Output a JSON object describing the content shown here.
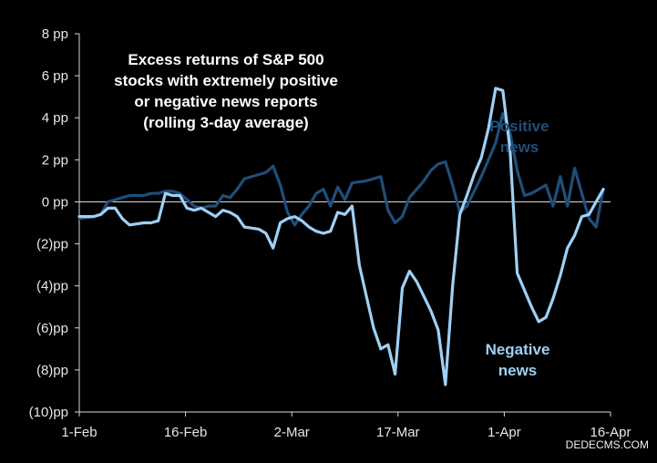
{
  "chart_data": {
    "type": "line",
    "title_lines": [
      "Excess returns of S&P 500",
      "stocks with extremely positive",
      "or negative news reports",
      "(rolling 3-day average)"
    ],
    "xlabel": "",
    "ylabel": "",
    "x_ticks": [
      "1-Feb",
      "16-Feb",
      "2-Mar",
      "17-Mar",
      "1-Apr",
      "16-Apr"
    ],
    "xlim": [
      0,
      74
    ],
    "ylim": [
      -10,
      8
    ],
    "y_ticks": [
      8,
      6,
      4,
      2,
      0,
      -2,
      -4,
      -6,
      -8,
      -10
    ],
    "y_tick_labels": [
      "8 pp",
      "6 pp",
      "4 pp",
      "2 pp",
      "0 pp",
      "(2)pp",
      "(4)pp",
      "(6)pp",
      "(8)pp",
      "(10)pp"
    ],
    "grid": false,
    "colors": {
      "positive": "#1f4e79",
      "negative": "#9fd0f5",
      "axis": "#d9d9d9",
      "background": "#000000"
    },
    "series": [
      {
        "name": "Positive news",
        "label_lines": [
          "Positive",
          "news"
        ],
        "points": [
          [
            0,
            -0.8
          ],
          [
            2,
            -0.7
          ],
          [
            3,
            -0.6
          ],
          [
            4,
            0.0
          ],
          [
            5,
            0.1
          ],
          [
            6,
            0.2
          ],
          [
            7,
            0.3
          ],
          [
            9,
            0.3
          ],
          [
            10,
            0.4
          ],
          [
            11,
            0.4
          ],
          [
            12,
            0.5
          ],
          [
            13,
            0.5
          ],
          [
            14,
            0.4
          ],
          [
            15,
            0.1
          ],
          [
            16,
            -0.2
          ],
          [
            17,
            -0.3
          ],
          [
            18,
            -0.2
          ],
          [
            19,
            -0.2
          ],
          [
            20,
            0.3
          ],
          [
            21,
            0.2
          ],
          [
            22,
            0.6
          ],
          [
            23,
            1.1
          ],
          [
            25,
            1.3
          ],
          [
            26,
            1.4
          ],
          [
            27,
            1.7
          ],
          [
            28,
            0.8
          ],
          [
            29,
            -0.5
          ],
          [
            30,
            -1.1
          ],
          [
            31,
            -0.6
          ],
          [
            32,
            -0.2
          ],
          [
            33,
            0.4
          ],
          [
            34,
            0.6
          ],
          [
            35,
            -0.2
          ],
          [
            36,
            0.7
          ],
          [
            37,
            0.1
          ],
          [
            38,
            0.9
          ],
          [
            40,
            1.0
          ],
          [
            42,
            1.2
          ],
          [
            43,
            -0.4
          ],
          [
            44,
            -1.0
          ],
          [
            45,
            -0.7
          ],
          [
            46,
            0.2
          ],
          [
            47,
            0.6
          ],
          [
            48,
            1.0
          ],
          [
            49,
            1.5
          ],
          [
            50,
            1.8
          ],
          [
            51,
            1.9
          ],
          [
            52,
            0.8
          ],
          [
            53,
            -0.5
          ],
          [
            54,
            -0.2
          ],
          [
            56,
            1.2
          ],
          [
            57,
            2.0
          ],
          [
            58,
            2.8
          ],
          [
            59,
            4.2
          ],
          [
            60,
            3.3
          ],
          [
            61,
            1.5
          ],
          [
            62,
            0.3
          ],
          [
            63,
            0.4
          ],
          [
            65,
            0.8
          ],
          [
            66,
            -0.2
          ],
          [
            67,
            1.2
          ],
          [
            68,
            -0.2
          ],
          [
            69,
            1.6
          ],
          [
            70,
            0.4
          ],
          [
            71,
            -0.8
          ],
          [
            72,
            -1.2
          ],
          [
            73,
            0.6
          ]
        ]
      },
      {
        "name": "Negative news",
        "label_lines": [
          "Negative",
          "news"
        ],
        "points": [
          [
            0,
            -0.7
          ],
          [
            2,
            -0.7
          ],
          [
            3,
            -0.6
          ],
          [
            4,
            -0.3
          ],
          [
            5,
            -0.3
          ],
          [
            6,
            -0.8
          ],
          [
            7,
            -1.1
          ],
          [
            9,
            -1.0
          ],
          [
            10,
            -1.0
          ],
          [
            11,
            -0.9
          ],
          [
            12,
            0.4
          ],
          [
            13,
            0.3
          ],
          [
            14,
            0.3
          ],
          [
            15,
            -0.3
          ],
          [
            16,
            -0.4
          ],
          [
            17,
            -0.3
          ],
          [
            18,
            -0.5
          ],
          [
            19,
            -0.7
          ],
          [
            20,
            -0.4
          ],
          [
            21,
            -0.5
          ],
          [
            22,
            -0.7
          ],
          [
            23,
            -1.2
          ],
          [
            25,
            -1.3
          ],
          [
            26,
            -1.5
          ],
          [
            27,
            -2.2
          ],
          [
            28,
            -1.0
          ],
          [
            29,
            -0.8
          ],
          [
            30,
            -0.7
          ],
          [
            31,
            -0.9
          ],
          [
            32,
            -1.2
          ],
          [
            33,
            -1.4
          ],
          [
            34,
            -1.5
          ],
          [
            35,
            -1.4
          ],
          [
            36,
            -0.5
          ],
          [
            37,
            -0.6
          ],
          [
            38,
            -0.2
          ],
          [
            39,
            -3.0
          ],
          [
            40,
            -4.5
          ],
          [
            41,
            -6.0
          ],
          [
            42,
            -7.0
          ],
          [
            43,
            -6.8
          ],
          [
            44,
            -8.2
          ],
          [
            45,
            -4.1
          ],
          [
            46,
            -3.3
          ],
          [
            47,
            -3.8
          ],
          [
            48,
            -4.5
          ],
          [
            49,
            -5.2
          ],
          [
            50,
            -6.1
          ],
          [
            51,
            -8.7
          ],
          [
            52,
            -4.0
          ],
          [
            53,
            -0.6
          ],
          [
            54,
            0.3
          ],
          [
            55,
            1.3
          ],
          [
            56,
            2.1
          ],
          [
            57,
            3.5
          ],
          [
            58,
            5.4
          ],
          [
            59,
            5.3
          ],
          [
            60,
            2.5
          ],
          [
            61,
            -3.4
          ],
          [
            62,
            -4.2
          ],
          [
            63,
            -5.0
          ],
          [
            64,
            -5.7
          ],
          [
            65,
            -5.5
          ],
          [
            66,
            -4.6
          ],
          [
            67,
            -3.5
          ],
          [
            68,
            -2.2
          ],
          [
            69,
            -1.6
          ],
          [
            70,
            -0.7
          ],
          [
            71,
            -0.6
          ],
          [
            72,
            0.0
          ],
          [
            73,
            0.6
          ]
        ]
      }
    ]
  },
  "watermark": "DEDECMS.COM"
}
